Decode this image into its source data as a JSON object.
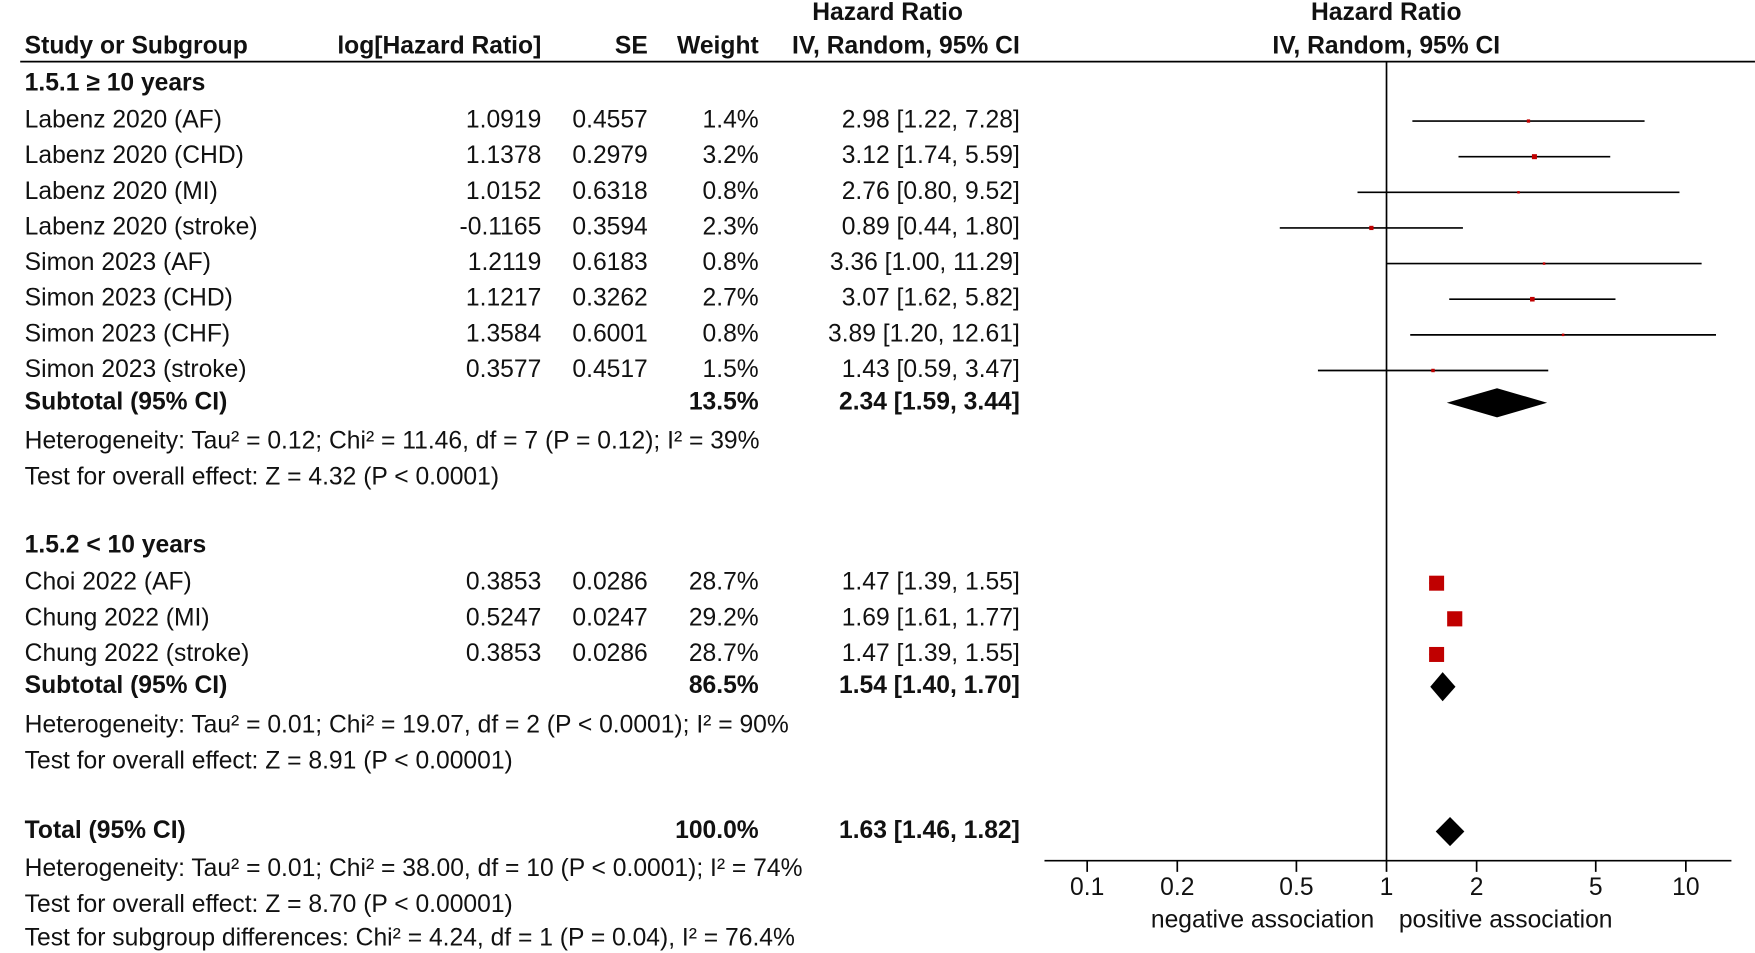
{
  "chart_data": {
    "type": "forest",
    "headers": {
      "study": "Study or Subgroup",
      "log_hr": "log[Hazard Ratio]",
      "se": "SE",
      "weight": "Weight",
      "table_effect": "Hazard Ratio",
      "table_method": "IV, Random, 95% CI",
      "plot_effect": "Hazard Ratio",
      "plot_method": "IV, Random, 95% CI"
    },
    "x_scale": "log",
    "xlim": [
      0.072,
      14.2
    ],
    "xticks": [
      0.1,
      0.2,
      0.5,
      1,
      2,
      5,
      10
    ],
    "reference_line": 1,
    "left_label": "negative association",
    "right_label": "positive association",
    "study_color": "#c00000",
    "summary_color": "#000000",
    "groups": [
      {
        "title": "1.5.1 ≥ 10 years",
        "studies": [
          {
            "name": "Labenz 2020 (AF)",
            "log_hr": 1.0919,
            "se": 0.4557,
            "weight": 1.4,
            "weight_label": "1.4%",
            "hr": 2.98,
            "lower": 1.22,
            "upper": 7.28,
            "ci_label": "2.98 [1.22, 7.28]"
          },
          {
            "name": "Labenz 2020 (CHD)",
            "log_hr": 1.1378,
            "se": 0.2979,
            "weight": 3.2,
            "weight_label": "3.2%",
            "hr": 3.12,
            "lower": 1.74,
            "upper": 5.59,
            "ci_label": "3.12 [1.74, 5.59]"
          },
          {
            "name": "Labenz 2020 (MI)",
            "log_hr": 1.0152,
            "se": 0.6318,
            "weight": 0.8,
            "weight_label": "0.8%",
            "hr": 2.76,
            "lower": 0.8,
            "upper": 9.52,
            "ci_label": "2.76 [0.80, 9.52]"
          },
          {
            "name": "Labenz 2020 (stroke)",
            "log_hr": -0.1165,
            "se": 0.3594,
            "weight": 2.3,
            "weight_label": "2.3%",
            "hr": 0.89,
            "lower": 0.44,
            "upper": 1.8,
            "ci_label": "0.89 [0.44, 1.80]"
          },
          {
            "name": "Simon 2023 (AF)",
            "log_hr": 1.2119,
            "se": 0.6183,
            "weight": 0.8,
            "weight_label": "0.8%",
            "hr": 3.36,
            "lower": 1.0,
            "upper": 11.29,
            "ci_label": "3.36 [1.00, 11.29]"
          },
          {
            "name": "Simon 2023 (CHD)",
            "log_hr": 1.1217,
            "se": 0.3262,
            "weight": 2.7,
            "weight_label": "2.7%",
            "hr": 3.07,
            "lower": 1.62,
            "upper": 5.82,
            "ci_label": "3.07 [1.62, 5.82]"
          },
          {
            "name": "Simon 2023 (CHF)",
            "log_hr": 1.3584,
            "se": 0.6001,
            "weight": 0.8,
            "weight_label": "0.8%",
            "hr": 3.89,
            "lower": 1.2,
            "upper": 12.61,
            "ci_label": "3.89 [1.20, 12.61]"
          },
          {
            "name": "Simon 2023 (stroke)",
            "log_hr": 0.3577,
            "se": 0.4517,
            "weight": 1.5,
            "weight_label": "1.5%",
            "hr": 1.43,
            "lower": 0.59,
            "upper": 3.47,
            "ci_label": "1.43 [0.59, 3.47]"
          }
        ],
        "subtotal": {
          "name": "Subtotal (95% CI)",
          "weight": 13.5,
          "weight_label": "13.5%",
          "hr": 2.34,
          "lower": 1.59,
          "upper": 3.44,
          "ci_label": "2.34 [1.59, 3.44]"
        },
        "heterogeneity": "Heterogeneity: Tau² = 0.12; Chi² = 11.46, df = 7 (P = 0.12); I² = 39%",
        "overall_effect": "Test for overall effect: Z = 4.32 (P < 0.0001)"
      },
      {
        "title": "1.5.2 < 10 years",
        "studies": [
          {
            "name": "Choi 2022 (AF)",
            "log_hr": 0.3853,
            "se": 0.0286,
            "weight": 28.7,
            "weight_label": "28.7%",
            "hr": 1.47,
            "lower": 1.39,
            "upper": 1.55,
            "ci_label": "1.47 [1.39, 1.55]"
          },
          {
            "name": "Chung 2022 (MI)",
            "log_hr": 0.5247,
            "se": 0.0247,
            "weight": 29.2,
            "weight_label": "29.2%",
            "hr": 1.69,
            "lower": 1.61,
            "upper": 1.77,
            "ci_label": "1.69 [1.61, 1.77]"
          },
          {
            "name": "Chung 2022 (stroke)",
            "log_hr": 0.3853,
            "se": 0.0286,
            "weight": 28.7,
            "weight_label": "28.7%",
            "hr": 1.47,
            "lower": 1.39,
            "upper": 1.55,
            "ci_label": "1.47 [1.39, 1.55]"
          }
        ],
        "subtotal": {
          "name": "Subtotal (95% CI)",
          "weight": 86.5,
          "weight_label": "86.5%",
          "hr": 1.54,
          "lower": 1.4,
          "upper": 1.7,
          "ci_label": "1.54 [1.40, 1.70]"
        },
        "heterogeneity": "Heterogeneity: Tau² = 0.01; Chi² = 19.07, df = 2 (P < 0.0001); I² = 90%",
        "overall_effect": "Test for overall effect: Z = 8.91 (P < 0.00001)"
      }
    ],
    "total": {
      "name": "Total (95% CI)",
      "weight": 100.0,
      "weight_label": "100.0%",
      "hr": 1.63,
      "lower": 1.46,
      "upper": 1.82,
      "ci_label": "1.63 [1.46, 1.82]"
    },
    "total_heterogeneity": "Heterogeneity: Tau² = 0.01; Chi² = 38.00, df = 10 (P < 0.0001); I² = 74%",
    "total_overall_effect": "Test for overall effect: Z = 8.70 (P < 0.00001)",
    "subgroup_differences": "Test for subgroup differences: Chi² = 4.24, df = 1 (P = 0.04), I² = 76.4%"
  }
}
